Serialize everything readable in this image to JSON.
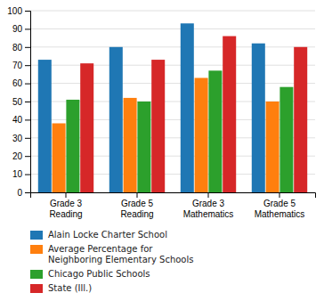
{
  "chart_data": {
    "type": "bar",
    "categories": [
      "Grade 3\nReading",
      "Grade 5\nReading",
      "Grade 3\nMathematics",
      "Grade 5\nMathematics"
    ],
    "series": [
      {
        "name": "Alain Locke Charter School",
        "values": [
          73,
          80,
          93,
          82
        ]
      },
      {
        "name": "Average Percentage for\nNeighboring Elementary Schools",
        "values": [
          38,
          52,
          63,
          50
        ]
      },
      {
        "name": "Chicago Public Schools",
        "values": [
          51,
          50,
          67,
          58
        ]
      },
      {
        "name": "State (Ill.)",
        "values": [
          71,
          73,
          86,
          80
        ]
      }
    ],
    "ylim": [
      0,
      100
    ],
    "yticks": [
      0,
      10,
      20,
      30,
      40,
      50,
      60,
      70,
      80,
      90,
      100
    ],
    "grid": true,
    "legend": "bottom"
  }
}
